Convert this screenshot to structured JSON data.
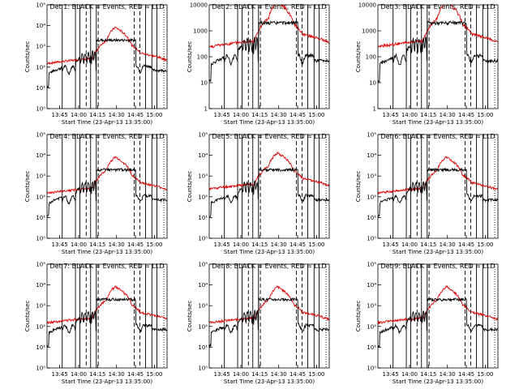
{
  "colors": {
    "events": "#000000",
    "lld": "#e00000",
    "frame": "#000000"
  },
  "common": {
    "xlabel": "Start Time (23-Apr-13 13:35:00)",
    "ylabel": "Counts/sec",
    "xticks": [
      {
        "m": 10,
        "label": "13:45"
      },
      {
        "m": 25,
        "label": "14:00"
      },
      {
        "m": 40,
        "label": "14:15"
      },
      {
        "m": 55,
        "label": "14:30"
      },
      {
        "m": 70,
        "label": "14:45"
      },
      {
        "m": 85,
        "label": "15:00"
      }
    ],
    "xlim_minutes": [
      0,
      95
    ],
    "solid_lines_minutes": [
      12,
      22.5,
      26,
      34.5,
      39,
      78,
      83,
      87
    ],
    "dashed_lines_minutes": [
      31,
      40.5,
      69,
      73.5
    ],
    "dotted_lines_minutes": [
      92.5
    ],
    "y_tick_style_a": [
      "10⁰",
      "10¹",
      "10²",
      "10³",
      "10⁴",
      "10⁵"
    ],
    "y_tick_style_b": [
      "1",
      "10",
      "100",
      "1000",
      "10000"
    ]
  },
  "chart_data": [
    {
      "type": "line",
      "title": "Det 1: BLACK = Events, RED = LLD",
      "ylim": [
        1,
        100000
      ],
      "ytick_style": "a",
      "xlabel": "Start Time (23-Apr-13 13:35:00)",
      "ylabel": "Counts/sec",
      "series": [
        {
          "name": "Events",
          "color": "#000000"
        },
        {
          "name": "LLD",
          "color": "#e00000"
        }
      ]
    },
    {
      "type": "line",
      "title": "Det 2: BLACK = Events, RED = LLD",
      "ylim": [
        1,
        10000
      ],
      "ytick_style": "b",
      "xlabel": "Start Time (23-Apr-13 13:35:00)",
      "ylabel": "Counts/sec",
      "series": [
        {
          "name": "Events",
          "color": "#000000"
        },
        {
          "name": "LLD",
          "color": "#e00000"
        }
      ]
    },
    {
      "type": "line",
      "title": "Det 3: BLACK = Events, RED = LLD",
      "ylim": [
        1,
        10000
      ],
      "ytick_style": "b",
      "xlabel": "Start Time (23-Apr-13 13:35:00)",
      "ylabel": "Counts/sec",
      "series": [
        {
          "name": "Events",
          "color": "#000000"
        },
        {
          "name": "LLD",
          "color": "#e00000"
        }
      ]
    },
    {
      "type": "line",
      "title": "Det 4: BLACK = Events, RED = LLD",
      "ylim": [
        1,
        100000
      ],
      "ytick_style": "a",
      "xlabel": "Start Time (23-Apr-13 13:35:00)",
      "ylabel": "Counts/sec",
      "series": [
        {
          "name": "Events",
          "color": "#000000"
        },
        {
          "name": "LLD",
          "color": "#e00000"
        }
      ]
    },
    {
      "type": "line",
      "title": "Det 5: BLACK = Events, RED = LLD",
      "ylim": [
        1,
        100000
      ],
      "ytick_style": "a",
      "xlabel": "Start Time (23-Apr-13 13:35:00)",
      "ylabel": "Counts/sec",
      "series": [
        {
          "name": "Events",
          "color": "#000000"
        },
        {
          "name": "LLD",
          "color": "#e00000"
        }
      ]
    },
    {
      "type": "line",
      "title": "Det 6: BLACK = Events, RED = LLD",
      "ylim": [
        1,
        100000
      ],
      "ytick_style": "a",
      "xlabel": "Start Time (23-Apr-13 13:35:00)",
      "ylabel": "Counts/sec",
      "series": [
        {
          "name": "Events",
          "color": "#000000"
        },
        {
          "name": "LLD",
          "color": "#e00000"
        }
      ]
    },
    {
      "type": "line",
      "title": "Det 7: BLACK = Events, RED = LLD",
      "ylim": [
        1,
        100000
      ],
      "ytick_style": "a",
      "xlabel": "Start Time (23-Apr-13 13:35:00)",
      "ylabel": "Counts/sec",
      "series": [
        {
          "name": "Events",
          "color": "#000000"
        },
        {
          "name": "LLD",
          "color": "#e00000"
        }
      ]
    },
    {
      "type": "line",
      "title": "Det 8: BLACK = Events, RED = LLD",
      "ylim": [
        1,
        100000
      ],
      "ytick_style": "a",
      "xlabel": "Start Time (23-Apr-13 13:35:00)",
      "ylabel": "Counts/sec",
      "series": [
        {
          "name": "Events",
          "color": "#000000"
        },
        {
          "name": "LLD",
          "color": "#e00000"
        }
      ]
    },
    {
      "type": "line",
      "title": "Det 9: BLACK = Events, RED = LLD",
      "ylim": [
        1,
        100000
      ],
      "ytick_style": "a",
      "xlabel": "Start Time (23-Apr-13 13:35:00)",
      "ylabel": "Counts/sec",
      "series": [
        {
          "name": "Events",
          "color": "#000000"
        },
        {
          "name": "LLD",
          "color": "#e00000"
        }
      ]
    }
  ]
}
